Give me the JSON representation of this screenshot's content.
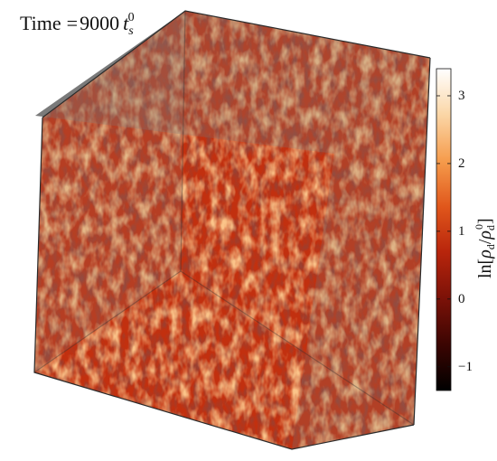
{
  "title": {
    "label": "Time",
    "operator": "=",
    "value": "9000",
    "variable": "t",
    "subscript": "s",
    "superscript": "0"
  },
  "colorbar": {
    "label_prefix": "ln",
    "label_symbol": "ρ",
    "label_subscript": "d",
    "label_superscript": "0",
    "ticks": [
      "3",
      "2",
      "1",
      "0",
      "−1"
    ],
    "range": [
      -1.35,
      3.4
    ],
    "colors": [
      "#000000",
      "#3a0502",
      "#7d1208",
      "#b8250c",
      "#e0561b",
      "#f59a4a",
      "#fbd7a8",
      "#ffffff"
    ]
  },
  "cube": {
    "face_color": "#7a7a7a",
    "edge_color": "#2b2b2b",
    "dominant_color": "#c2300f",
    "highlight_color": "#f4a24f"
  }
}
